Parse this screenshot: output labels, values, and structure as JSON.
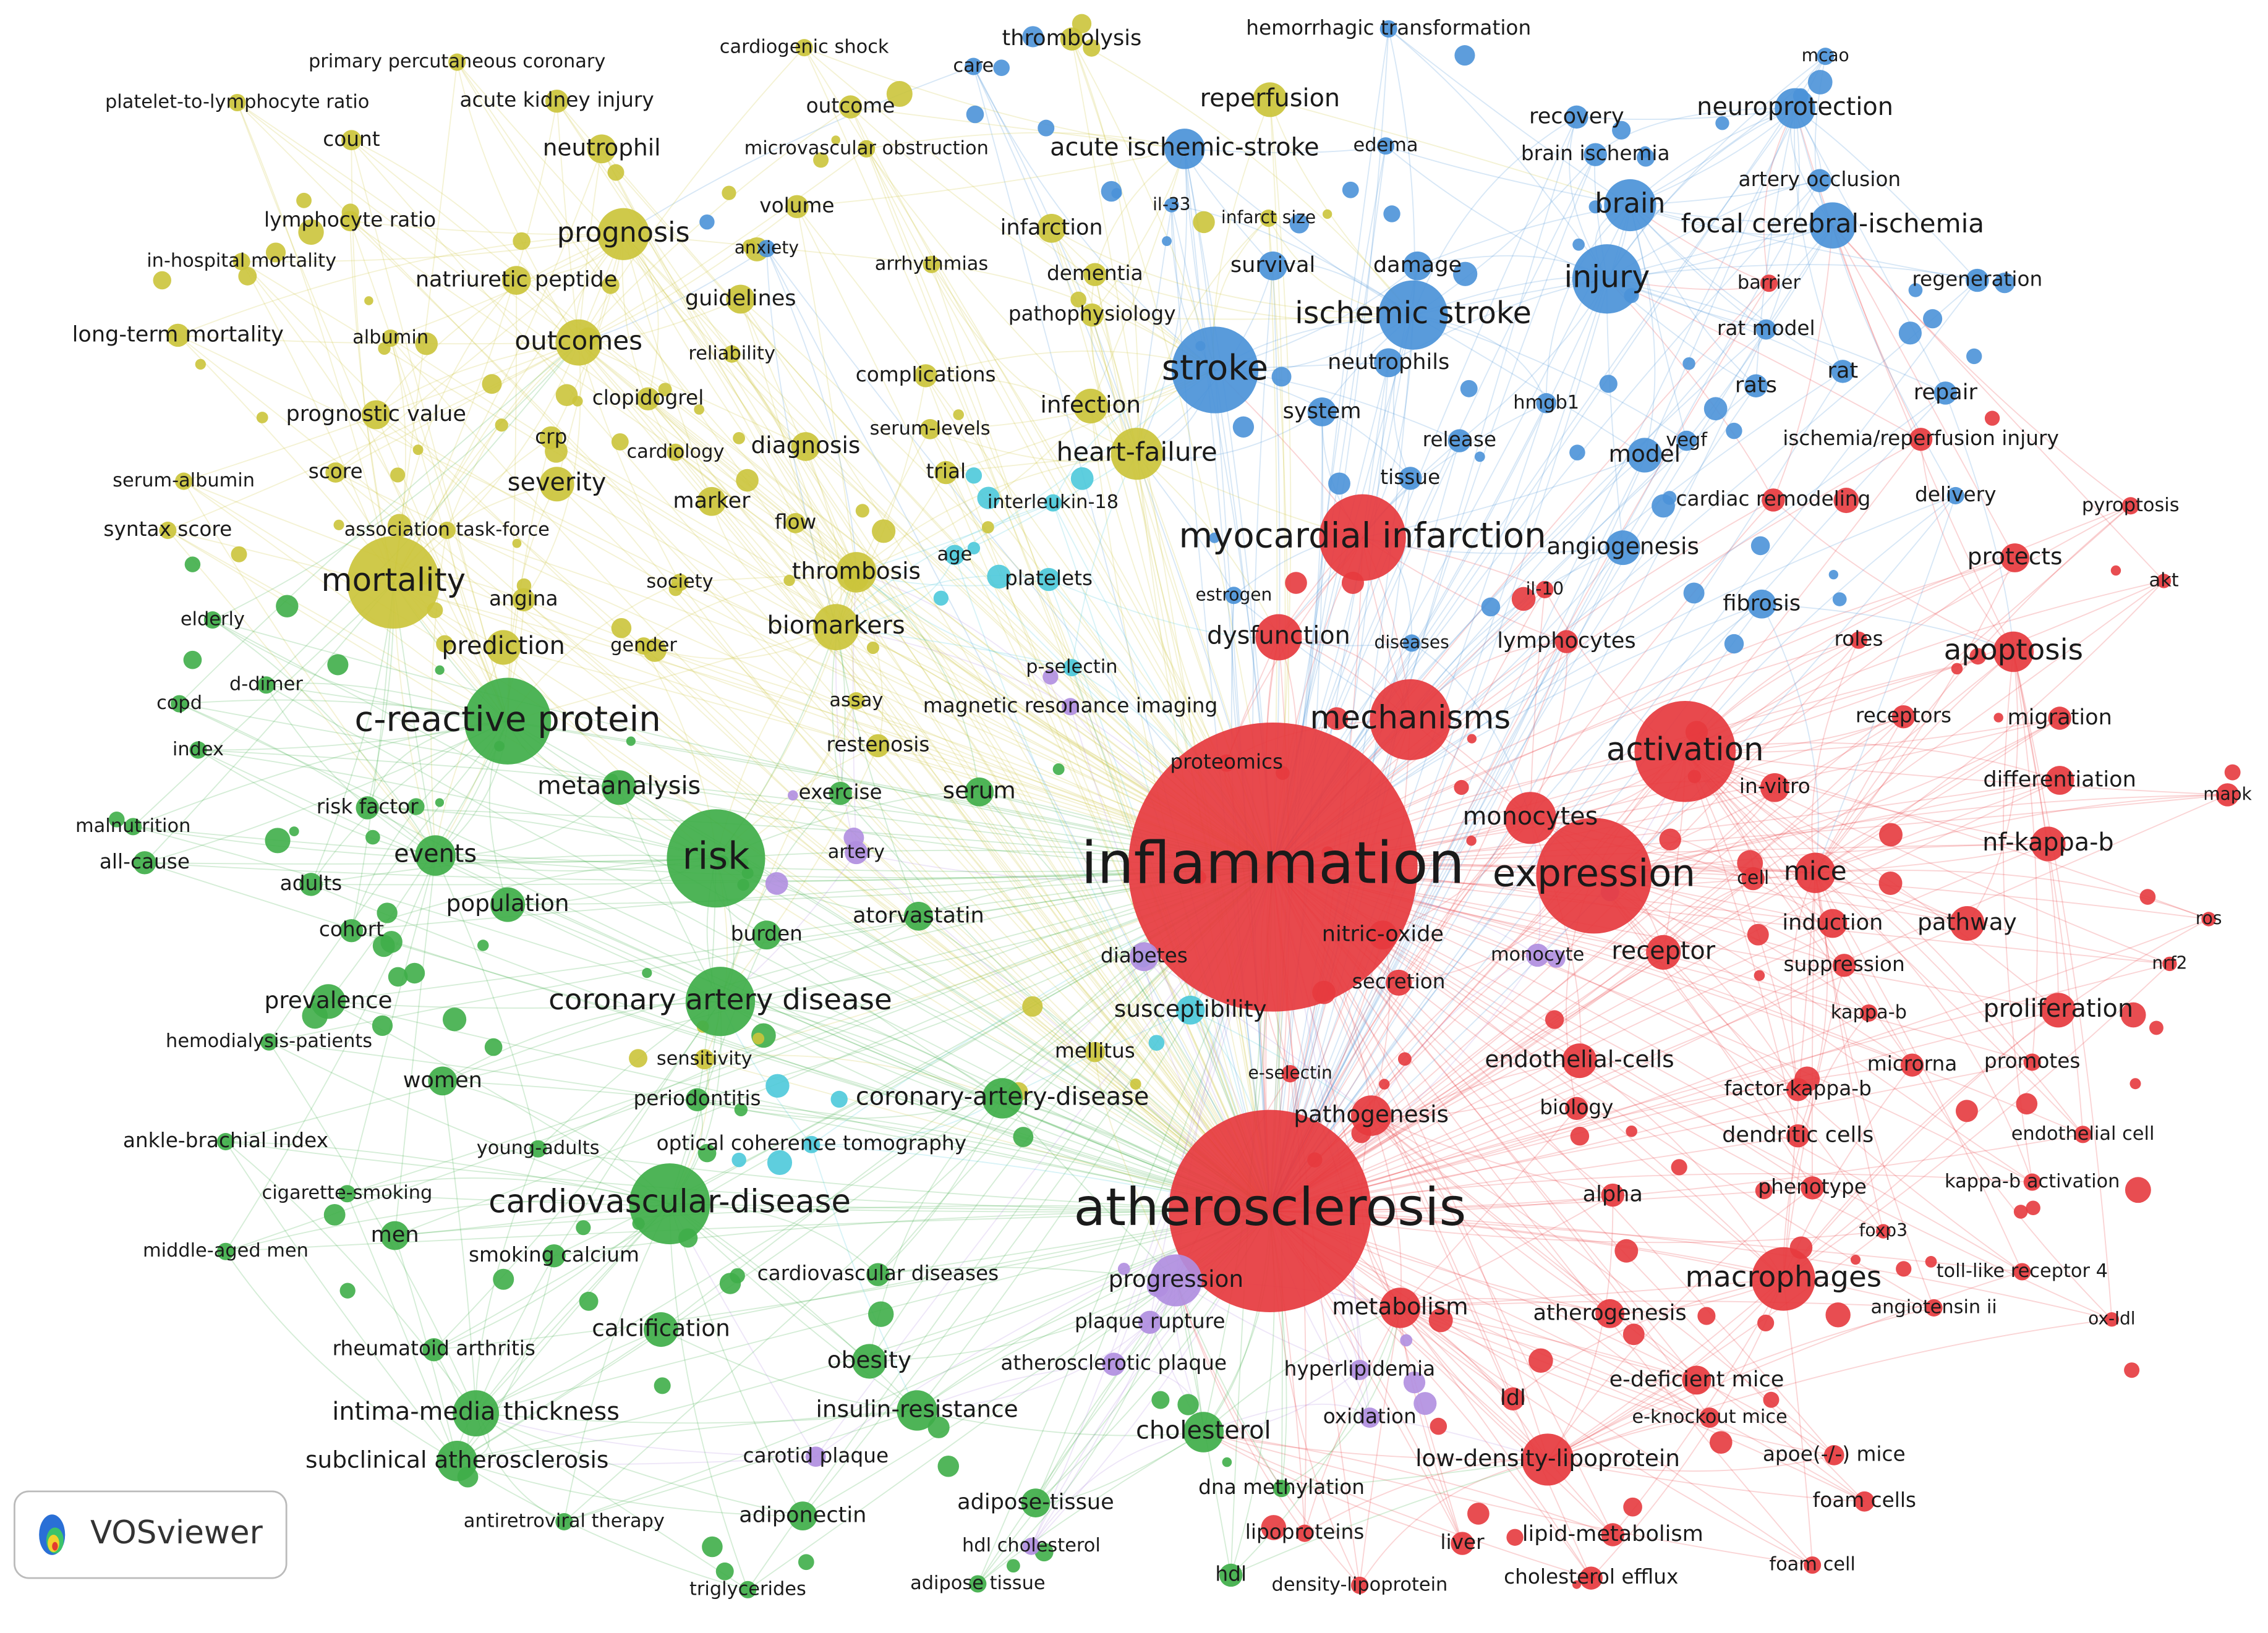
{
  "logo": {
    "text": "VOSviewer"
  },
  "nodes": [
    {
      "label": "inflammation",
      "color": "#e63a3e"
    },
    {
      "label": "atherosclerosis",
      "color": "#e63a3e"
    },
    {
      "label": "myocardial infarction",
      "color": "#e63a3e"
    },
    {
      "label": "expression",
      "color": "#e63a3e"
    },
    {
      "label": "activation",
      "color": "#e63a3e"
    },
    {
      "label": "mechanisms",
      "color": "#e63a3e"
    },
    {
      "label": "apoptosis",
      "color": "#e63a3e"
    },
    {
      "label": "macrophages",
      "color": "#e63a3e"
    },
    {
      "label": "monocytes",
      "color": "#e63a3e"
    },
    {
      "label": "receptor",
      "color": "#e63a3e"
    },
    {
      "label": "endothelial-cells",
      "color": "#e63a3e"
    },
    {
      "label": "pathogenesis",
      "color": "#e63a3e"
    },
    {
      "label": "metabolism",
      "color": "#e63a3e"
    },
    {
      "label": "atherogenesis",
      "color": "#e63a3e"
    },
    {
      "label": "low-density-lipoprotein",
      "color": "#e63a3e"
    },
    {
      "label": "mice",
      "color": "#e63a3e"
    },
    {
      "label": "nf-kappa-b",
      "color": "#e63a3e"
    },
    {
      "label": "pathway",
      "color": "#e63a3e"
    },
    {
      "label": "proliferation",
      "color": "#e63a3e"
    },
    {
      "label": "differentiation",
      "color": "#e63a3e"
    },
    {
      "label": "migration",
      "color": "#e63a3e"
    },
    {
      "label": "protects",
      "color": "#e63a3e"
    },
    {
      "label": "pyroptosis",
      "color": "#e63a3e"
    },
    {
      "label": "akt",
      "color": "#e63a3e"
    },
    {
      "label": "mapk",
      "color": "#e63a3e"
    },
    {
      "label": "ros",
      "color": "#e63a3e"
    },
    {
      "label": "nrf2",
      "color": "#e63a3e"
    },
    {
      "label": "receptors",
      "color": "#e63a3e"
    },
    {
      "label": "in-vitro",
      "color": "#e63a3e"
    },
    {
      "label": "cell",
      "color": "#e63a3e"
    },
    {
      "label": "induction",
      "color": "#e63a3e"
    },
    {
      "label": "suppression",
      "color": "#e63a3e"
    },
    {
      "label": "kappa-b",
      "color": "#e63a3e"
    },
    {
      "label": "factor-kappa-b",
      "color": "#e63a3e"
    },
    {
      "label": "dendritic cells",
      "color": "#e63a3e"
    },
    {
      "label": "microrna",
      "color": "#e63a3e"
    },
    {
      "label": "promotes",
      "color": "#e63a3e"
    },
    {
      "label": "endothelial cell",
      "color": "#e63a3e"
    },
    {
      "label": "kappa-b activation",
      "color": "#e63a3e"
    },
    {
      "label": "phenotype",
      "color": "#e63a3e"
    },
    {
      "label": "foxp3",
      "color": "#e63a3e"
    },
    {
      "label": "toll-like receptor 4",
      "color": "#e63a3e"
    },
    {
      "label": "angiotensin ii",
      "color": "#e63a3e"
    },
    {
      "label": "ox-ldl",
      "color": "#e63a3e"
    },
    {
      "label": "e-deficient mice",
      "color": "#e63a3e"
    },
    {
      "label": "e-knockout mice",
      "color": "#e63a3e"
    },
    {
      "label": "apoe(-/-) mice",
      "color": "#e63a3e"
    },
    {
      "label": "foam cells",
      "color": "#e63a3e"
    },
    {
      "label": "foam cell",
      "color": "#e63a3e"
    },
    {
      "label": "lipid-metabolism",
      "color": "#e63a3e"
    },
    {
      "label": "cholesterol efflux",
      "color": "#e63a3e"
    },
    {
      "label": "liver",
      "color": "#e63a3e"
    },
    {
      "label": "density-lipoprotein",
      "color": "#e63a3e"
    },
    {
      "label": "ldl",
      "color": "#e63a3e"
    },
    {
      "label": "hyperlipidemia",
      "color": "#b08ee0"
    },
    {
      "label": "oxidation",
      "color": "#b08ee0"
    },
    {
      "label": "nitric-oxide",
      "color": "#e63a3e"
    },
    {
      "label": "secretion",
      "color": "#e63a3e"
    },
    {
      "label": "monocyte",
      "color": "#b08ee0"
    },
    {
      "label": "e-selectin",
      "color": "#e63a3e"
    },
    {
      "label": "biology",
      "color": "#e63a3e"
    },
    {
      "label": "alpha",
      "color": "#e63a3e"
    },
    {
      "label": "proteomics",
      "color": "#e63a3e"
    },
    {
      "label": "lymphocytes",
      "color": "#e63a3e"
    },
    {
      "label": "dysfunction",
      "color": "#e63a3e"
    },
    {
      "label": "diseases",
      "color": "#4b92d8"
    },
    {
      "label": "estrogen",
      "color": "#4b92d8"
    },
    {
      "label": "il-10",
      "color": "#e63a3e"
    },
    {
      "label": "fibrosis",
      "color": "#4b92d8"
    },
    {
      "label": "roles",
      "color": "#e63a3e"
    },
    {
      "label": "cardiac remodeling",
      "color": "#e63a3e"
    },
    {
      "label": "ischemia/reperfusion injury",
      "color": "#e63a3e"
    },
    {
      "label": "stroke",
      "color": "#4b92d8"
    },
    {
      "label": "ischemic stroke",
      "color": "#4b92d8"
    },
    {
      "label": "injury",
      "color": "#4b92d8"
    },
    {
      "label": "brain",
      "color": "#4b92d8"
    },
    {
      "label": "focal cerebral-ischemia",
      "color": "#4b92d8"
    },
    {
      "label": "neuroprotection",
      "color": "#4b92d8"
    },
    {
      "label": "recovery",
      "color": "#4b92d8"
    },
    {
      "label": "mcao",
      "color": "#4b92d8"
    },
    {
      "label": "brain ischemia",
      "color": "#4b92d8"
    },
    {
      "label": "artery occlusion",
      "color": "#4b92d8"
    },
    {
      "label": "regeneration",
      "color": "#4b92d8"
    },
    {
      "label": "barrier",
      "color": "#e63a3e"
    },
    {
      "label": "rat model",
      "color": "#4b92d8"
    },
    {
      "label": "rats",
      "color": "#4b92d8"
    },
    {
      "label": "rat",
      "color": "#4b92d8"
    },
    {
      "label": "repair",
      "color": "#4b92d8"
    },
    {
      "label": "delivery",
      "color": "#4b92d8"
    },
    {
      "label": "model",
      "color": "#4b92d8"
    },
    {
      "label": "vegf",
      "color": "#4b92d8"
    },
    {
      "label": "hmgb1",
      "color": "#4b92d8"
    },
    {
      "label": "release",
      "color": "#4b92d8"
    },
    {
      "label": "tissue",
      "color": "#4b92d8"
    },
    {
      "label": "system",
      "color": "#4b92d8"
    },
    {
      "label": "neutrophils",
      "color": "#4b92d8"
    },
    {
      "label": "survival",
      "color": "#4b92d8"
    },
    {
      "label": "damage",
      "color": "#4b92d8"
    },
    {
      "label": "edema",
      "color": "#4b92d8"
    },
    {
      "label": "acute ischemic-stroke",
      "color": "#4b92d8"
    },
    {
      "label": "hemorrhagic transformation",
      "color": "#4b92d8"
    },
    {
      "label": "care",
      "color": "#4b92d8"
    },
    {
      "label": "angiogenesis",
      "color": "#4b92d8"
    },
    {
      "label": "infarct size",
      "color": "#cbc43b"
    },
    {
      "label": "il-33",
      "color": "#4b92d8"
    },
    {
      "label": "infection",
      "color": "#cbc43b"
    },
    {
      "label": "platelets",
      "color": "#4cc9da"
    },
    {
      "label": "mortality",
      "color": "#cbc43b"
    },
    {
      "label": "prognosis",
      "color": "#cbc43b"
    },
    {
      "label": "outcomes",
      "color": "#cbc43b"
    },
    {
      "label": "reperfusion",
      "color": "#cbc43b"
    },
    {
      "label": "thrombolysis",
      "color": "#cbc43b"
    },
    {
      "label": "cardiogenic shock",
      "color": "#cbc43b"
    },
    {
      "label": "outcome",
      "color": "#cbc43b"
    },
    {
      "label": "microvascular obstruction",
      "color": "#cbc43b"
    },
    {
      "label": "primary percutaneous coronary",
      "color": "#cbc43b"
    },
    {
      "label": "platelet-to-lymphocyte ratio",
      "color": "#cbc43b"
    },
    {
      "label": "acute kidney injury",
      "color": "#cbc43b"
    },
    {
      "label": "count",
      "color": "#cbc43b"
    },
    {
      "label": "neutrophil",
      "color": "#cbc43b"
    },
    {
      "label": "lymphocyte ratio",
      "color": "#cbc43b"
    },
    {
      "label": "in-hospital mortality",
      "color": "#cbc43b"
    },
    {
      "label": "natriuretic peptide",
      "color": "#cbc43b"
    },
    {
      "label": "long-term mortality",
      "color": "#cbc43b"
    },
    {
      "label": "albumin",
      "color": "#cbc43b"
    },
    {
      "label": "guidelines",
      "color": "#cbc43b"
    },
    {
      "label": "reliability",
      "color": "#cbc43b"
    },
    {
      "label": "volume",
      "color": "#cbc43b"
    },
    {
      "label": "anxiety",
      "color": "#4b92d8"
    },
    {
      "label": "arrhythmias",
      "color": "#cbc43b"
    },
    {
      "label": "infarction",
      "color": "#cbc43b"
    },
    {
      "label": "dementia",
      "color": "#cbc43b"
    },
    {
      "label": "pathophysiology",
      "color": "#cbc43b"
    },
    {
      "label": "complications",
      "color": "#cbc43b"
    },
    {
      "label": "prognostic value",
      "color": "#cbc43b"
    },
    {
      "label": "crp",
      "color": "#cbc43b"
    },
    {
      "label": "clopidogrel",
      "color": "#cbc43b"
    },
    {
      "label": "cardiology",
      "color": "#cbc43b"
    },
    {
      "label": "diagnosis",
      "color": "#cbc43b"
    },
    {
      "label": "serum-levels",
      "color": "#cbc43b"
    },
    {
      "label": "trial",
      "color": "#cbc43b"
    },
    {
      "label": "heart-failure",
      "color": "#cbc43b"
    },
    {
      "label": "interleukin-18",
      "color": "#4cc9da"
    },
    {
      "label": "serum-albumin",
      "color": "#cbc43b"
    },
    {
      "label": "score",
      "color": "#cbc43b"
    },
    {
      "label": "severity",
      "color": "#cbc43b"
    },
    {
      "label": "marker",
      "color": "#cbc43b"
    },
    {
      "label": "flow",
      "color": "#cbc43b"
    },
    {
      "label": "syntax score",
      "color": "#cbc43b"
    },
    {
      "label": "association task-force",
      "color": "#cbc43b"
    },
    {
      "label": "angina",
      "color": "#cbc43b"
    },
    {
      "label": "society",
      "color": "#cbc43b"
    },
    {
      "label": "thrombosis",
      "color": "#cbc43b"
    },
    {
      "label": "age",
      "color": "#4cc9da"
    },
    {
      "label": "prediction",
      "color": "#cbc43b"
    },
    {
      "label": "gender",
      "color": "#cbc43b"
    },
    {
      "label": "biomarkers",
      "color": "#cbc43b"
    },
    {
      "label": "restenosis",
      "color": "#cbc43b"
    },
    {
      "label": "magnetic resonance imaging",
      "color": "#b08ee0"
    },
    {
      "label": "p-selectin",
      "color": "#4cc9da"
    },
    {
      "label": "assay",
      "color": "#cbc43b"
    },
    {
      "label": "c-reactive protein",
      "color": "#3fae49"
    },
    {
      "label": "risk",
      "color": "#3fae49"
    },
    {
      "label": "metaanalysis",
      "color": "#3fae49"
    },
    {
      "label": "events",
      "color": "#3fae49"
    },
    {
      "label": "population",
      "color": "#3fae49"
    },
    {
      "label": "coronary artery disease",
      "color": "#3fae49"
    },
    {
      "label": "cardiovascular-disease",
      "color": "#3fae49"
    },
    {
      "label": "prevalence",
      "color": "#3fae49"
    },
    {
      "label": "women",
      "color": "#3fae49"
    },
    {
      "label": "men",
      "color": "#3fae49"
    },
    {
      "label": "intima-media thickness",
      "color": "#3fae49"
    },
    {
      "label": "subclinical atherosclerosis",
      "color": "#3fae49"
    },
    {
      "label": "calcification",
      "color": "#3fae49"
    },
    {
      "label": "obesity",
      "color": "#3fae49"
    },
    {
      "label": "insulin-resistance",
      "color": "#3fae49"
    },
    {
      "label": "carotid plaque",
      "color": "#b08ee0"
    },
    {
      "label": "adiponectin",
      "color": "#3fae49"
    },
    {
      "label": "adipose-tissue",
      "color": "#3fae49"
    },
    {
      "label": "hdl cholesterol",
      "color": "#b08ee0"
    },
    {
      "label": "adipose tissue",
      "color": "#3fae49"
    },
    {
      "label": "triglycerides",
      "color": "#3fae49"
    },
    {
      "label": "antiretroviral therapy",
      "color": "#3fae49"
    },
    {
      "label": "hdl",
      "color": "#3fae49"
    },
    {
      "label": "cholesterol",
      "color": "#3fae49"
    },
    {
      "label": "dna methylation",
      "color": "#3fae49"
    },
    {
      "label": "lipoproteins",
      "color": "#e63a3e"
    },
    {
      "label": "rheumatoid arthritis",
      "color": "#3fae49"
    },
    {
      "label": "smoking calcium",
      "color": "#3fae49"
    },
    {
      "label": "cigarette-smoking",
      "color": "#3fae49"
    },
    {
      "label": "middle-aged men",
      "color": "#3fae49"
    },
    {
      "label": "ankle-brachial index",
      "color": "#3fae49"
    },
    {
      "label": "hemodialysis-patients",
      "color": "#3fae49"
    },
    {
      "label": "young-adults",
      "color": "#3fae49"
    },
    {
      "label": "optical coherence tomography",
      "color": "#4cc9da"
    },
    {
      "label": "periodontitis",
      "color": "#3fae49"
    },
    {
      "label": "sensitivity",
      "color": "#cbc43b"
    },
    {
      "label": "cardiovascular diseases",
      "color": "#3fae49"
    },
    {
      "label": "coronary-artery-disease",
      "color": "#3fae49"
    },
    {
      "label": "atorvastatin",
      "color": "#3fae49"
    },
    {
      "label": "burden",
      "color": "#3fae49"
    },
    {
      "label": "artery",
      "color": "#b08ee0"
    },
    {
      "label": "exercise",
      "color": "#3fae49"
    },
    {
      "label": "serum",
      "color": "#3fae49"
    },
    {
      "label": "risk factor",
      "color": "#3fae49"
    },
    {
      "label": "adults",
      "color": "#3fae49"
    },
    {
      "label": "cohort",
      "color": "#3fae49"
    },
    {
      "label": "all-cause",
      "color": "#3fae49"
    },
    {
      "label": "malnutrition",
      "color": "#3fae49"
    },
    {
      "label": "index",
      "color": "#3fae49"
    },
    {
      "label": "copd",
      "color": "#3fae49"
    },
    {
      "label": "d-dimer",
      "color": "#3fae49"
    },
    {
      "label": "elderly",
      "color": "#3fae49"
    },
    {
      "label": "progression",
      "color": "#b08ee0"
    },
    {
      "label": "plaque rupture",
      "color": "#b08ee0"
    },
    {
      "label": "atherosclerotic plaque",
      "color": "#b08ee0"
    },
    {
      "label": "diabetes",
      "color": "#b08ee0"
    },
    {
      "label": "mellitus",
      "color": "#cbc43b"
    },
    {
      "label": "susceptibility",
      "color": "#4cc9da"
    }
  ]
}
